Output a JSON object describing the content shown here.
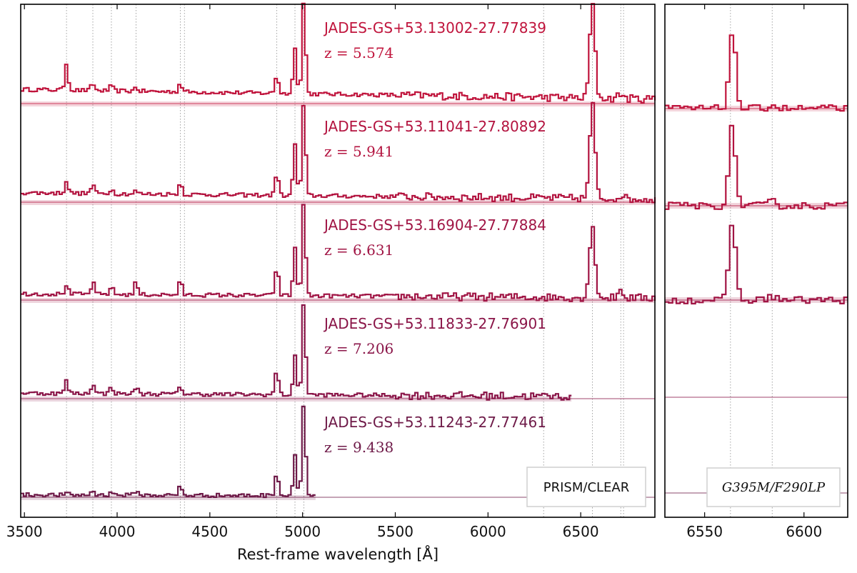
{
  "chart_data": [
    {
      "type": "line",
      "panel": "left",
      "xlabel": "Rest-frame wavelength [Å]",
      "xlim": [
        3480,
        6900
      ],
      "xticks": [
        3500,
        4000,
        4500,
        5000,
        5500,
        6000,
        6500
      ],
      "box_label": "PRISM/CLEAR",
      "grid": "vertical dotted lines at emission-line wavelengths",
      "reference_lines_x": [
        3727,
        3869,
        3969,
        4102,
        4341,
        4363,
        4861,
        4959,
        5007,
        6300,
        6563,
        6716,
        6731
      ],
      "series": [
        {
          "name": "JADES-GS+53.13002-27.77839",
          "z_label": "z = 5.574",
          "z": 5.574,
          "color": "#c0143c",
          "x_range": [
            3480,
            6900
          ],
          "peaks": [
            [
              3727,
              1.7
            ],
            [
              3869,
              0.45
            ],
            [
              3969,
              0.3
            ],
            [
              4102,
              0.25
            ],
            [
              4341,
              0.55
            ],
            [
              4861,
              1.2
            ],
            [
              4959,
              3.0
            ],
            [
              5007,
              6.0
            ],
            [
              6563,
              6.0
            ],
            [
              6716,
              0.3
            ]
          ],
          "continuum": 0.9
        },
        {
          "name": "JADES-GS+53.11041-27.80892",
          "z_label": "z = 5.941",
          "z": 5.941,
          "color": "#b3133f",
          "x_range": [
            3480,
            6900
          ],
          "peaks": [
            [
              3727,
              0.8
            ],
            [
              3869,
              0.6
            ],
            [
              3969,
              0.3
            ],
            [
              4102,
              0.2
            ],
            [
              4341,
              0.75
            ],
            [
              4861,
              1.5
            ],
            [
              4959,
              3.3
            ],
            [
              5007,
              6.0
            ],
            [
              6563,
              6.0
            ],
            [
              6716,
              0.25
            ]
          ],
          "continuum": 0.6
        },
        {
          "name": "JADES-GS+53.16904-27.77884",
          "z_label": "z = 6.631",
          "z": 6.631,
          "color": "#a01444",
          "x_range": [
            3480,
            6900
          ],
          "peaks": [
            [
              3727,
              0.6
            ],
            [
              3869,
              0.75
            ],
            [
              3969,
              0.5
            ],
            [
              4102,
              0.8
            ],
            [
              4341,
              0.9
            ],
            [
              4861,
              1.9
            ],
            [
              4959,
              3.1
            ],
            [
              5007,
              6.0
            ],
            [
              6563,
              4.8
            ],
            [
              6716,
              0.5
            ]
          ],
          "continuum": 0.4
        },
        {
          "name": "JADES-GS+53.11833-27.76901",
          "z_label": "z = 7.206",
          "z": 7.206,
          "color": "#8a1548",
          "x_range": [
            3480,
            6450
          ],
          "peaks": [
            [
              3727,
              0.8
            ],
            [
              3869,
              0.7
            ],
            [
              3969,
              0.5
            ],
            [
              4102,
              0.45
            ],
            [
              4341,
              0.55
            ],
            [
              4861,
              1.6
            ],
            [
              4959,
              2.4
            ],
            [
              5007,
              6.0
            ]
          ],
          "continuum": 0.35
        },
        {
          "name": "JADES-GS+53.11243-27.77461",
          "z_label": "z = 9.438",
          "z": 9.438,
          "color": "#6e1a48",
          "x_range": [
            3480,
            5070
          ],
          "peaks": [
            [
              3727,
              0.1
            ],
            [
              3869,
              0.3
            ],
            [
              3969,
              0.25
            ],
            [
              4102,
              0.3
            ],
            [
              4341,
              0.6
            ],
            [
              4861,
              1.6
            ],
            [
              4959,
              2.6
            ],
            [
              5007,
              6.0
            ]
          ],
          "continuum": 0.15
        }
      ]
    },
    {
      "type": "line",
      "panel": "right",
      "xlim": [
        6530,
        6622
      ],
      "xticks": [
        6550,
        6600
      ],
      "box_label": "G395M/F290LP",
      "reference_lines_x": [
        6563,
        6584
      ],
      "series": [
        {
          "name": "JADES-GS+53.13002-27.77839",
          "color": "#c0143c",
          "has_data": true,
          "peak_height": 1.0
        },
        {
          "name": "JADES-GS+53.11041-27.80892",
          "color": "#b3133f",
          "has_data": true,
          "peak_height": 1.0
        },
        {
          "name": "JADES-GS+53.16904-27.77884",
          "color": "#a01444",
          "has_data": true,
          "peak_height": 1.0
        },
        {
          "name": "JADES-GS+53.11833-27.76901",
          "color": "#8a1548",
          "has_data": false
        },
        {
          "name": "JADES-GS+53.11243-27.77461",
          "color": "#6e1a48",
          "has_data": false
        }
      ]
    }
  ]
}
